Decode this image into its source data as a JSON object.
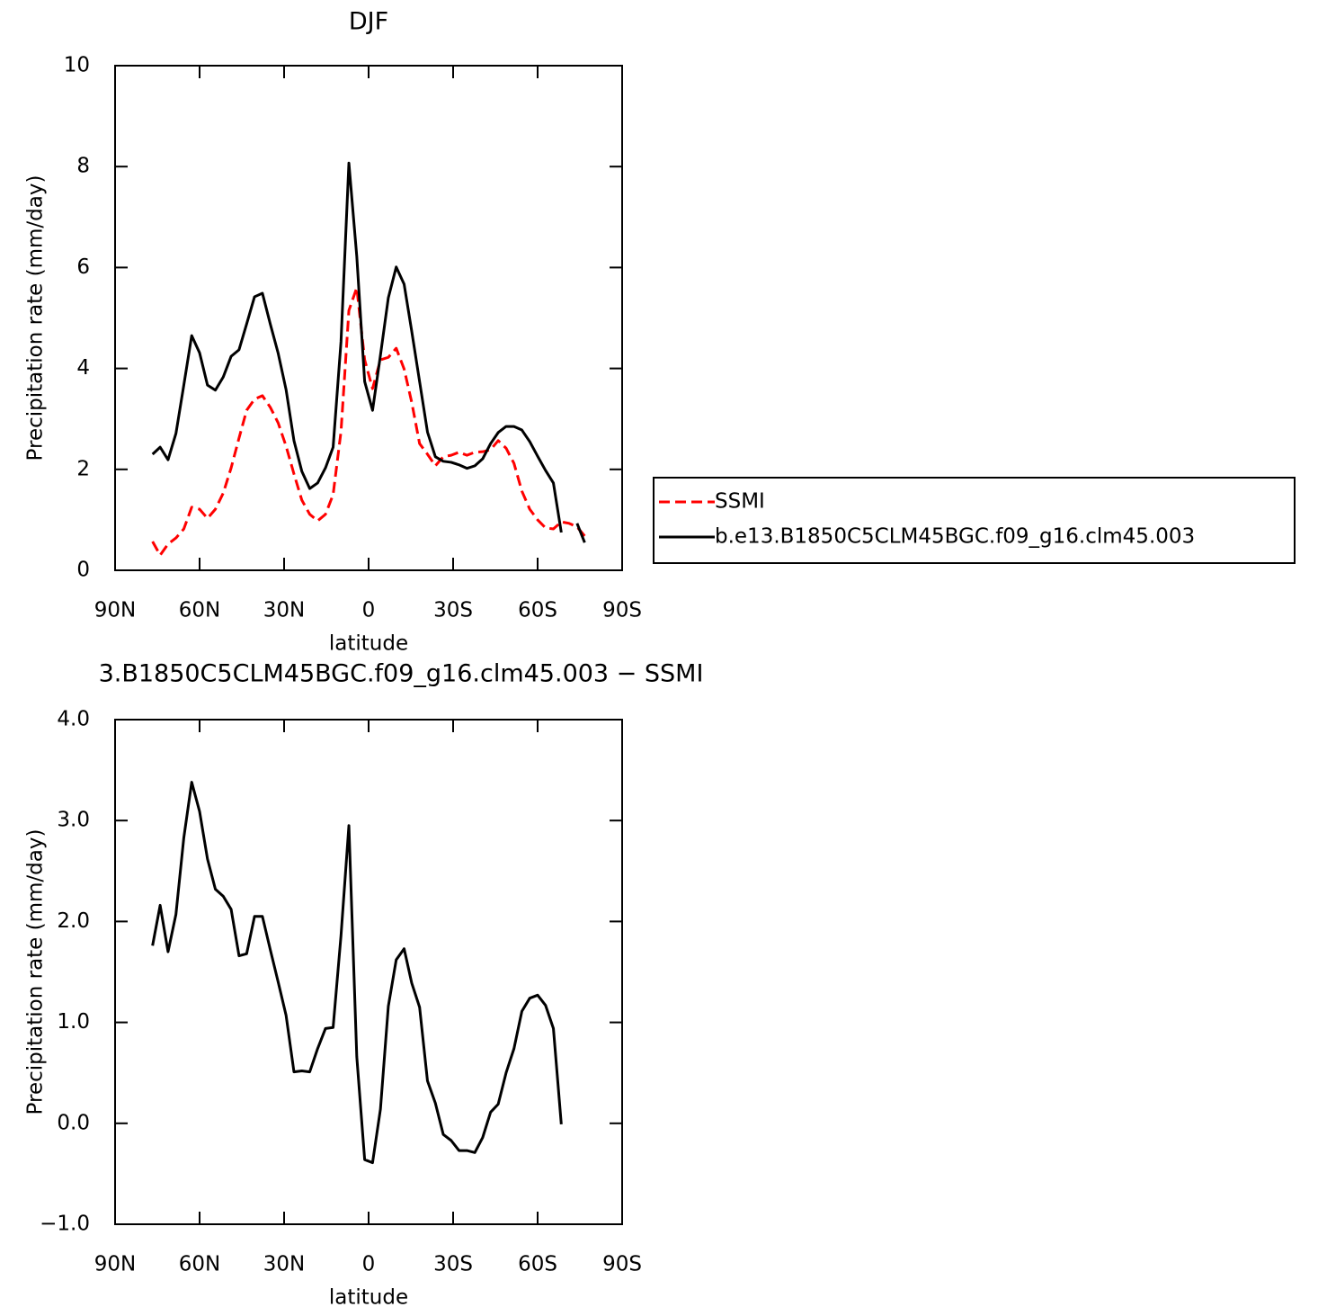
{
  "chart_data": [
    {
      "type": "line",
      "title": "DJF",
      "x_label": "latitude",
      "y_label": "Precipitation rate (mm/day)",
      "x": [
        76.7,
        74.0,
        71.2,
        68.4,
        65.6,
        62.8,
        60.0,
        57.2,
        54.4,
        51.6,
        48.8,
        46.0,
        43.3,
        40.5,
        37.7,
        34.9,
        32.1,
        29.3,
        26.5,
        23.7,
        20.9,
        18.1,
        15.3,
        12.6,
        9.8,
        7.0,
        4.2,
        1.4,
        -1.4,
        -4.2,
        -7.0,
        -9.8,
        -12.6,
        -15.3,
        -18.1,
        -20.9,
        -23.7,
        -26.5,
        -29.3,
        -32.1,
        -34.9,
        -37.7,
        -40.5,
        -43.3,
        -46.0,
        -48.8,
        -51.6,
        -54.4,
        -57.2,
        -60.0,
        -62.8,
        -65.6,
        -68.4,
        -71.2,
        -74.0,
        -76.7
      ],
      "xlim": [
        90,
        -90
      ],
      "xticks": [
        {
          "value": 90,
          "label": "90N"
        },
        {
          "value": 60,
          "label": "60N"
        },
        {
          "value": 30,
          "label": "30N"
        },
        0,
        {
          "value": -30,
          "label": "30S"
        },
        {
          "value": -60,
          "label": "60S"
        },
        {
          "value": -90,
          "label": "90S"
        }
      ],
      "ylim": [
        0,
        10
      ],
      "yticks": [
        0,
        2,
        4,
        6,
        8,
        10
      ],
      "legend": "right",
      "series": [
        {
          "name": "SSMI",
          "color": "#ff0000",
          "linestyle": "dashed",
          "values": [
            0.57,
            0.3,
            0.52,
            0.64,
            0.82,
            1.25,
            1.21,
            1.03,
            1.21,
            1.53,
            2.03,
            2.62,
            3.17,
            3.39,
            3.46,
            3.23,
            2.92,
            2.46,
            1.91,
            1.39,
            1.11,
            0.98,
            1.11,
            1.5,
            2.75,
            5.15,
            5.6,
            4.17,
            3.6,
            4.17,
            4.22,
            4.4,
            3.99,
            3.33,
            2.51,
            2.3,
            2.07,
            2.25,
            2.28,
            2.34,
            2.28,
            2.34,
            2.35,
            2.39,
            2.57,
            2.42,
            2.12,
            1.57,
            1.21,
            1.0,
            0.84,
            0.82,
            0.96,
            0.93,
            0.86,
            0.68
          ]
        },
        {
          "name": "b.e13.B1850C5CLM45BGC.f09_g16.clm45.003",
          "color": "#000000",
          "linestyle": "solid",
          "values": [
            2.3,
            2.44,
            2.19,
            2.71,
            3.67,
            4.65,
            4.31,
            3.67,
            3.57,
            3.83,
            4.24,
            4.37,
            4.88,
            5.42,
            5.49,
            4.88,
            4.3,
            3.58,
            2.57,
            1.96,
            1.62,
            1.73,
            2.03,
            2.44,
            4.53,
            8.07,
            6.22,
            3.74,
            3.17,
            4.26,
            5.4,
            6.01,
            5.67,
            4.74,
            3.74,
            2.74,
            2.25,
            2.16,
            2.14,
            2.09,
            2.02,
            2.07,
            2.21,
            2.51,
            2.73,
            2.85,
            2.85,
            2.78,
            2.55,
            2.26,
            1.98,
            1.73,
            0.75,
            null,
            0.93,
            0.55
          ]
        }
      ]
    },
    {
      "type": "line",
      "title": "3.B1850C5CLM45BGC.f09_g16.clm45.003 − SSMI",
      "x_label": "latitude",
      "y_label": "Precipitation rate (mm/day)",
      "x": [
        76.7,
        74.0,
        71.2,
        68.4,
        65.6,
        62.8,
        60.0,
        57.2,
        54.4,
        51.6,
        48.8,
        46.0,
        43.3,
        40.5,
        37.7,
        34.9,
        32.1,
        29.3,
        26.5,
        23.7,
        20.9,
        18.1,
        15.3,
        12.6,
        9.8,
        7.0,
        4.2,
        1.4,
        -1.4,
        -4.2,
        -7.0,
        -9.8,
        -12.6,
        -15.3,
        -18.1,
        -20.9,
        -23.7,
        -26.5,
        -29.3,
        -32.1,
        -34.9,
        -37.7,
        -40.5,
        -43.3,
        -46.0,
        -48.8,
        -51.6,
        -54.4,
        -57.2,
        -60.0,
        -62.8,
        -65.6,
        -68.4,
        -71.2,
        -74.0,
        -76.7
      ],
      "xlim": [
        90,
        -90
      ],
      "xticks": [
        {
          "value": 90,
          "label": "90N"
        },
        {
          "value": 60,
          "label": "60N"
        },
        {
          "value": 30,
          "label": "30N"
        },
        0,
        {
          "value": -30,
          "label": "30S"
        },
        {
          "value": -60,
          "label": "60S"
        },
        {
          "value": -90,
          "label": "90S"
        }
      ],
      "ylim": [
        -1,
        4
      ],
      "yticks": [
        {
          "value": -1,
          "label": "−1.0"
        },
        {
          "value": 0,
          "label": "0.0"
        },
        {
          "value": 1,
          "label": "1.0"
        },
        {
          "value": 2,
          "label": "2.0"
        },
        {
          "value": 3,
          "label": "3.0"
        },
        {
          "value": 4,
          "label": "4.0"
        }
      ],
      "series": [
        {
          "color": "#000000",
          "linestyle": "solid",
          "values": [
            1.76,
            2.16,
            1.7,
            2.07,
            2.83,
            3.38,
            3.09,
            2.62,
            2.32,
            2.25,
            2.12,
            1.66,
            1.68,
            2.05,
            2.05,
            1.72,
            1.4,
            1.07,
            0.51,
            0.52,
            0.51,
            0.74,
            0.94,
            0.95,
            1.86,
            2.95,
            0.66,
            -0.36,
            -0.39,
            0.14,
            1.16,
            1.62,
            1.73,
            1.39,
            1.15,
            0.42,
            0.2,
            -0.11,
            -0.17,
            -0.27,
            -0.27,
            -0.29,
            -0.14,
            0.11,
            0.19,
            0.5,
            0.74,
            1.11,
            1.24,
            1.27,
            1.17,
            0.94,
            -0.01,
            null,
            null,
            null
          ]
        }
      ]
    }
  ]
}
